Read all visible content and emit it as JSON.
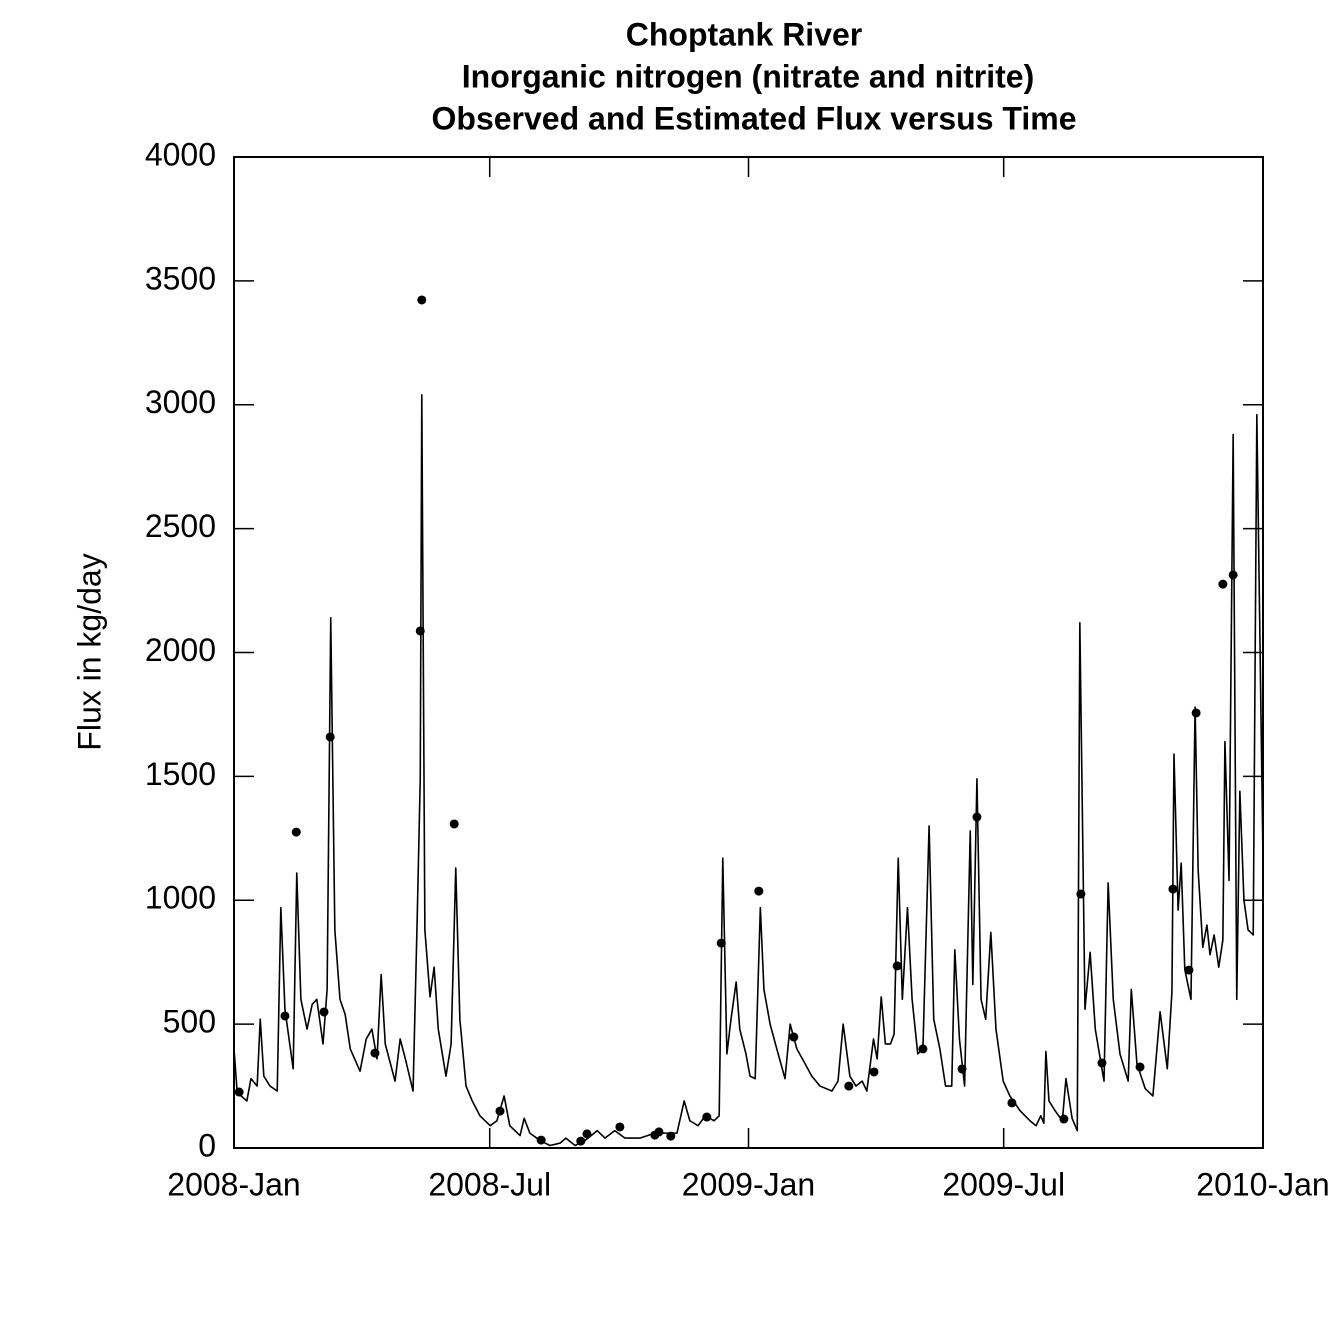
{
  "chart_data": {
    "type": "line",
    "title": [
      "Choptank River",
      "Inorganic nitrogen (nitrate and nitrite)",
      "Observed and Estimated Flux versus Time"
    ],
    "ylabel": "Flux in kg/day",
    "xlim": [
      2008,
      2010
    ],
    "ylim": [
      0,
      4000
    ],
    "xticks": [
      {
        "value": 2008,
        "label": "2008-Jan"
      },
      {
        "value": 2008.497,
        "label": "2008-Jul"
      },
      {
        "value": 2009,
        "label": "2009-Jan"
      },
      {
        "value": 2009.496,
        "label": "2009-Jul"
      },
      {
        "value": 2010,
        "label": "2010-Jan"
      }
    ],
    "yticks": [
      0,
      500,
      1000,
      1500,
      2000,
      2500,
      3000,
      3500,
      4000
    ],
    "series": [
      {
        "type": "line",
        "color": "#000000",
        "x": [
          2008.0,
          2008.006,
          2008.014,
          2008.025,
          2008.033,
          2008.045,
          2008.051,
          2008.058,
          2008.07,
          2008.084,
          2008.091,
          2008.099,
          2008.115,
          2008.122,
          2008.13,
          2008.142,
          2008.152,
          2008.161,
          2008.173,
          2008.181,
          2008.188,
          2008.196,
          2008.206,
          2008.216,
          2008.226,
          2008.245,
          2008.257,
          2008.268,
          2008.278,
          2008.286,
          2008.294,
          2008.313,
          2008.323,
          2008.333,
          2008.348,
          2008.356,
          2008.362,
          2008.365,
          2008.371,
          2008.381,
          2008.389,
          2008.397,
          2008.412,
          2008.422,
          2008.431,
          2008.439,
          2008.451,
          2008.463,
          2008.478,
          2008.498,
          2008.511,
          2008.525,
          2008.536,
          2008.556,
          2008.564,
          2008.575,
          2008.595,
          2008.614,
          2008.634,
          2008.645,
          2008.663,
          2008.682,
          2008.706,
          2008.721,
          2008.74,
          2008.76,
          2008.789,
          2008.818,
          2008.838,
          2008.861,
          2008.875,
          2008.886,
          2008.902,
          2008.916,
          2008.933,
          2008.943,
          2008.95,
          2008.958,
          2008.966,
          2008.976,
          2008.983,
          2008.995,
          2009.003,
          2009.013,
          2009.023,
          2009.03,
          2009.042,
          2009.055,
          2009.071,
          2009.081,
          2009.094,
          2009.11,
          2009.123,
          2009.139,
          2009.162,
          2009.174,
          2009.184,
          2009.197,
          2009.209,
          2009.221,
          2009.23,
          2009.243,
          2009.25,
          2009.258,
          2009.266,
          2009.276,
          2009.283,
          2009.291,
          2009.299,
          2009.309,
          2009.318,
          2009.329,
          2009.339,
          2009.351,
          2009.36,
          2009.372,
          2009.383,
          2009.395,
          2009.401,
          2009.41,
          2009.42,
          2009.431,
          2009.436,
          2009.444,
          2009.452,
          2009.461,
          2009.471,
          2009.481,
          2009.495,
          2009.508,
          2009.528,
          2009.547,
          2009.559,
          2009.568,
          2009.574,
          2009.578,
          2009.584,
          2009.596,
          2009.61,
          2009.617,
          2009.629,
          2009.639,
          2009.644,
          2009.654,
          2009.664,
          2009.674,
          2009.691,
          2009.699,
          2009.709,
          2009.722,
          2009.738,
          2009.744,
          2009.755,
          2009.771,
          2009.786,
          2009.8,
          2009.814,
          2009.823,
          2009.827,
          2009.835,
          2009.841,
          2009.848,
          2009.86,
          2009.868,
          2009.874,
          2009.883,
          2009.891,
          2009.897,
          2009.905,
          2009.914,
          2009.922,
          2009.926,
          2009.934,
          2009.942,
          2009.949,
          2009.955,
          2009.963,
          2009.971,
          2009.981,
          2009.988,
          2010.0
        ],
        "values": [
          400,
          230,
          210,
          190,
          280,
          250,
          520,
          290,
          250,
          230,
          970,
          560,
          320,
          1110,
          600,
          480,
          580,
          600,
          420,
          640,
          2140,
          880,
          600,
          540,
          400,
          310,
          440,
          480,
          360,
          700,
          420,
          270,
          440,
          360,
          230,
          920,
          1490,
          3040,
          880,
          610,
          730,
          480,
          290,
          420,
          1130,
          520,
          250,
          190,
          130,
          90,
          110,
          210,
          90,
          50,
          120,
          60,
          30,
          10,
          20,
          40,
          10,
          30,
          70,
          40,
          70,
          40,
          40,
          60,
          60,
          60,
          190,
          110,
          90,
          130,
          110,
          130,
          1170,
          380,
          520,
          670,
          480,
          380,
          290,
          280,
          970,
          640,
          500,
          400,
          280,
          500,
          400,
          340,
          290,
          250,
          230,
          270,
          500,
          290,
          250,
          270,
          230,
          440,
          360,
          610,
          420,
          420,
          460,
          1170,
          600,
          970,
          600,
          380,
          400,
          1300,
          520,
          400,
          250,
          250,
          800,
          440,
          250,
          1280,
          660,
          1490,
          600,
          520,
          870,
          480,
          270,
          210,
          150,
          110,
          90,
          130,
          100,
          390,
          190,
          150,
          110,
          280,
          120,
          70,
          2120,
          560,
          790,
          480,
          270,
          1070,
          600,
          380,
          270,
          640,
          340,
          240,
          210,
          550,
          320,
          630,
          1590,
          960,
          1150,
          720,
          600,
          1780,
          1120,
          810,
          900,
          780,
          860,
          730,
          840,
          1640,
          1080,
          2880,
          600,
          1440,
          1000,
          880,
          860,
          2960,
          1160
        ]
      },
      {
        "type": "scatter",
        "color": "#000000",
        "x": [
          2008.01,
          2008.099,
          2008.121,
          2008.175,
          2008.187,
          2008.274,
          2008.362,
          2008.365,
          2008.428,
          2008.517,
          2008.597,
          2008.674,
          2008.686,
          2008.75,
          2008.818,
          2008.826,
          2008.849,
          2008.919,
          2008.947,
          2009.02,
          2009.088,
          2009.195,
          2009.244,
          2009.289,
          2009.339,
          2009.415,
          2009.444,
          2009.512,
          2009.613,
          2009.646,
          2009.687,
          2009.761,
          2009.825,
          2009.856,
          2009.87,
          2009.922,
          2009.942
        ],
        "values": [
          226,
          533,
          1275,
          549,
          1659,
          383,
          2087,
          3423,
          1308,
          149,
          32,
          28,
          57,
          85,
          52,
          65,
          48,
          125,
          827,
          1037,
          448,
          250,
          307,
          735,
          400,
          319,
          1336,
          182,
          117,
          1025,
          343,
          327,
          1045,
          718,
          1756,
          2276,
          2313
        ]
      }
    ]
  }
}
